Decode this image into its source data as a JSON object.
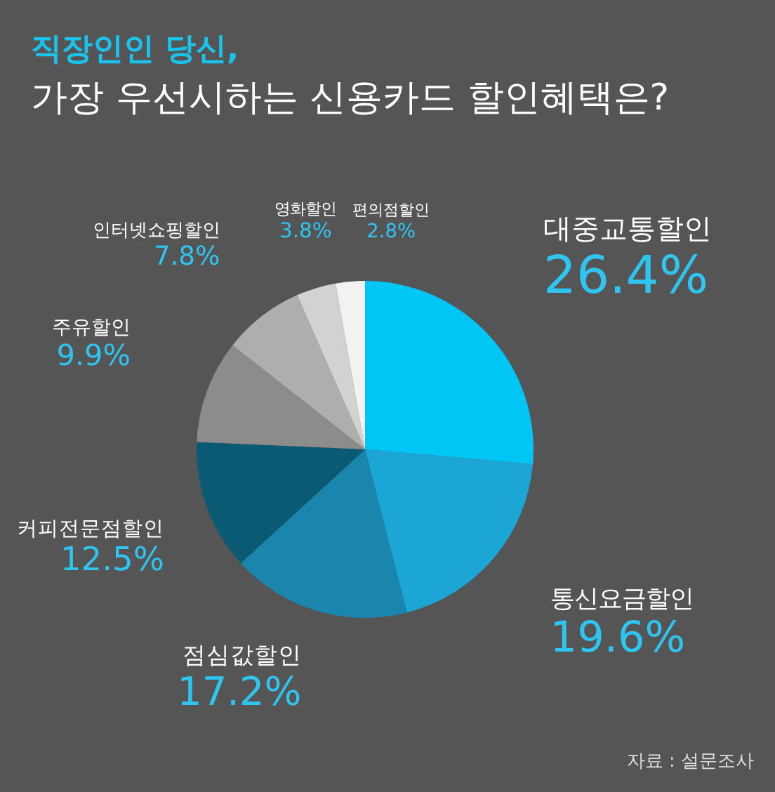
{
  "chart_data": {
    "type": "pie",
    "title": "직장인인 당신,",
    "subtitle": "가장 우선시하는 신용카드 할인혜택은?",
    "categories": [
      "대중교통할인",
      "통신요금할인",
      "점심값할인",
      "커피전문점할인",
      "주유할인",
      "인터넷쇼핑할인",
      "영화할인",
      "편의점할인"
    ],
    "values": [
      26.4,
      19.6,
      17.2,
      12.5,
      9.9,
      7.8,
      3.8,
      2.8
    ],
    "value_labels": [
      "26.4%",
      "19.6%",
      "17.2%",
      "12.5%",
      "9.9%",
      "7.8%",
      "3.8%",
      "2.8%"
    ],
    "colors": [
      "#00c6f6",
      "#1ba6d6",
      "#1a86ad",
      "#0b5a73",
      "#8c8c8c",
      "#aeaeae",
      "#d2d2d2",
      "#f2f2f2"
    ],
    "annotations": [
      "자료 : 설문조사"
    ]
  }
}
